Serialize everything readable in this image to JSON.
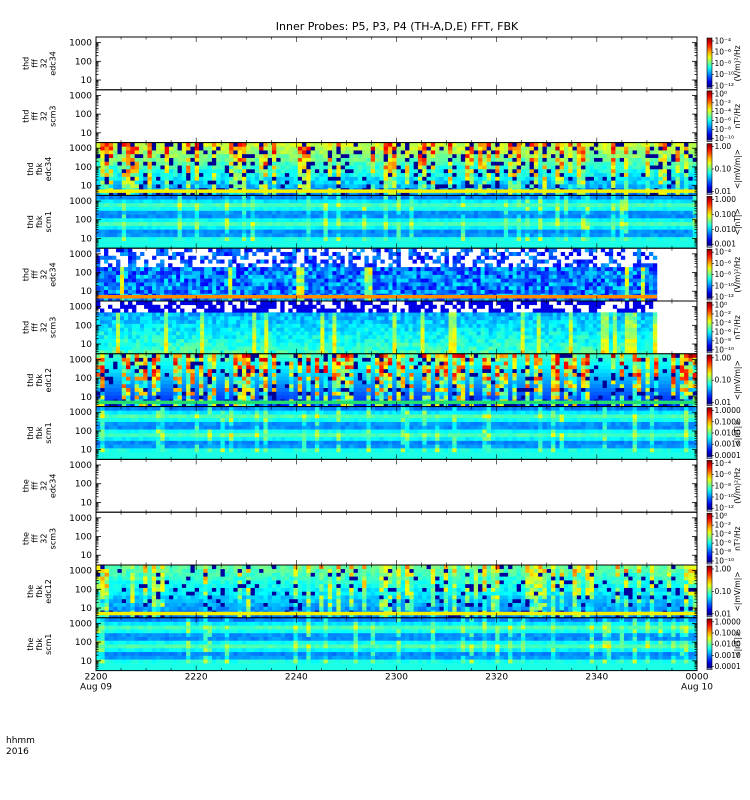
{
  "title": "Inner Probes: P5, P3, P4 (TH-A,D,E) FFT, FBK",
  "time_axis": {
    "label_line1": "hhmm",
    "label_line2": "2016",
    "ticks": [
      {
        "label": "2200",
        "sublabel": "Aug 09",
        "minutes": 0
      },
      {
        "label": "2220",
        "sublabel": "",
        "minutes": 20
      },
      {
        "label": "2240",
        "sublabel": "",
        "minutes": 40
      },
      {
        "label": "2300",
        "sublabel": "",
        "minutes": 60
      },
      {
        "label": "2320",
        "sublabel": "",
        "minutes": 80
      },
      {
        "label": "2340",
        "sublabel": "",
        "minutes": 100
      },
      {
        "label": "0000",
        "sublabel": "Aug 10",
        "minutes": 120
      }
    ],
    "range_minutes": [
      0,
      120
    ]
  },
  "chart_data": {
    "type": "heatmap",
    "x_unit": "minutes after 2016-08-09 22:00",
    "y_scale": "log",
    "panels": [
      {
        "id": "thd-fff-32-edc34",
        "label": [
          "thd",
          "fff",
          "32",
          "edc34"
        ],
        "yticks": [
          "1000",
          "100",
          "10"
        ],
        "ylim": [
          3,
          2000
        ],
        "cb_unit": "(V/m)²/Hz",
        "cb_ticks": [
          "10⁻⁴",
          "10⁻⁶",
          "10⁻⁸",
          "10⁻¹⁰",
          "10⁻¹²"
        ],
        "data": "none",
        "data_end": 0,
        "band": "none"
      },
      {
        "id": "thd-fff-32-scm3",
        "label": [
          "thd",
          "fff",
          "32",
          "scm3"
        ],
        "yticks": [
          "1000",
          "100",
          "10"
        ],
        "ylim": [
          3,
          2000
        ],
        "cb_unit": "nT²/Hz",
        "cb_ticks": [
          "10⁰",
          "10⁻²",
          "10⁻⁴",
          "10⁻⁶",
          "10⁻⁸",
          "10⁻¹⁰"
        ],
        "data": "none",
        "data_end": 0,
        "band": "none"
      },
      {
        "id": "thd-fbk-edc34",
        "label": [
          "thd",
          "fbk",
          "edc34"
        ],
        "yticks": [
          "1000",
          "100",
          "10"
        ],
        "ylim": [
          3,
          2000
        ],
        "cb_unit": "<|mV/m|>",
        "cb_ticks": [
          "1.00",
          "0.10",
          "0.01"
        ],
        "data": "fbk_e",
        "data_end": 120,
        "band": "yellow"
      },
      {
        "id": "thd-fbk-scm1",
        "label": [
          "thd",
          "fbk",
          "scm1"
        ],
        "yticks": [
          "1000",
          "100",
          "10"
        ],
        "ylim": [
          3,
          2000
        ],
        "cb_unit": "<|nT|>",
        "cb_ticks": [
          "1.000",
          "0.100",
          "0.010",
          "0.001"
        ],
        "data": "fbk_b",
        "data_end": 120,
        "band": "none"
      },
      {
        "id": "thd-fff-32-edc34-b",
        "label": [
          "thd",
          "fff",
          "32",
          "edc34"
        ],
        "yticks": [
          "1000",
          "100",
          "10"
        ],
        "ylim": [
          3,
          2000
        ],
        "cb_unit": "(V/m)²/Hz",
        "cb_ticks": [
          "10⁻⁴",
          "10⁻⁶",
          "10⁻⁸",
          "10⁻¹⁰",
          "10⁻¹²"
        ],
        "data": "fff_e",
        "data_end": 112,
        "band": "orange"
      },
      {
        "id": "thd-fff-32-scm3-b",
        "label": [
          "thd",
          "fff",
          "32",
          "scm3"
        ],
        "yticks": [
          "1000",
          "100",
          "10"
        ],
        "ylim": [
          3,
          2000
        ],
        "cb_unit": "nT²/Hz",
        "cb_ticks": [
          "10⁰",
          "10⁻²",
          "10⁻⁴",
          "10⁻⁶",
          "10⁻⁸",
          "10⁻¹⁰"
        ],
        "data": "fff_b",
        "data_end": 112,
        "band": "none"
      },
      {
        "id": "thd-fbk-edc12",
        "label": [
          "thd",
          "fbk",
          "edc12"
        ],
        "yticks": [
          "1000",
          "100",
          "10"
        ],
        "ylim": [
          3,
          2000
        ],
        "cb_unit": "<|mV/m|>",
        "cb_ticks": [
          "1.00",
          "0.10",
          "0.01"
        ],
        "data": "fbk_e_hot",
        "data_end": 120,
        "band": "green"
      },
      {
        "id": "thd-fbk-scm1-b",
        "label": [
          "thd",
          "fbk",
          "scm1"
        ],
        "yticks": [
          "1000",
          "100",
          "10"
        ],
        "ylim": [
          3,
          2000
        ],
        "cb_unit": "<|nT|>",
        "cb_ticks": [
          "1.0000",
          "0.1000",
          "0.0100",
          "0.0010",
          "0.0001"
        ],
        "data": "fbk_b",
        "data_end": 120,
        "band": "none"
      },
      {
        "id": "the-fff-32-edc34",
        "label": [
          "the",
          "fff",
          "32",
          "edc34"
        ],
        "yticks": [
          "1000",
          "100",
          "10"
        ],
        "ylim": [
          3,
          2000
        ],
        "cb_unit": "(V/m)²/Hz",
        "cb_ticks": [
          "10⁻⁴",
          "10⁻⁶",
          "10⁻⁸",
          "10⁻¹⁰",
          "10⁻¹²"
        ],
        "data": "none",
        "data_end": 0,
        "band": "none"
      },
      {
        "id": "the-fff-32-scm3",
        "label": [
          "the",
          "fff",
          "32",
          "scm3"
        ],
        "yticks": [
          "1000",
          "100",
          "10"
        ],
        "ylim": [
          3,
          2000
        ],
        "cb_unit": "nT²/Hz",
        "cb_ticks": [
          "10⁰",
          "10⁻²",
          "10⁻⁴",
          "10⁻⁶",
          "10⁻⁸",
          "10⁻¹⁰"
        ],
        "data": "none",
        "data_end": 0,
        "band": "none"
      },
      {
        "id": "the-fbk-edc12",
        "label": [
          "the",
          "fbk",
          "edc12"
        ],
        "yticks": [
          "1000",
          "100",
          "10"
        ],
        "ylim": [
          3,
          2000
        ],
        "cb_unit": "<|mV/m|>",
        "cb_ticks": [
          "1.00",
          "0.10",
          "0.01"
        ],
        "data": "fbk_e_green",
        "data_end": 120,
        "band": "yellow"
      },
      {
        "id": "the-fbk-scm1",
        "label": [
          "the",
          "fbk",
          "scm1"
        ],
        "yticks": [
          "1000",
          "100",
          "10"
        ],
        "ylim": [
          3,
          2000
        ],
        "cb_unit": "<|nT|>",
        "cb_ticks": [
          "1.0000",
          "0.1000",
          "0.0100",
          "0.0010",
          "0.0001"
        ],
        "data": "fbk_b",
        "data_end": 120,
        "band": "none"
      }
    ]
  }
}
